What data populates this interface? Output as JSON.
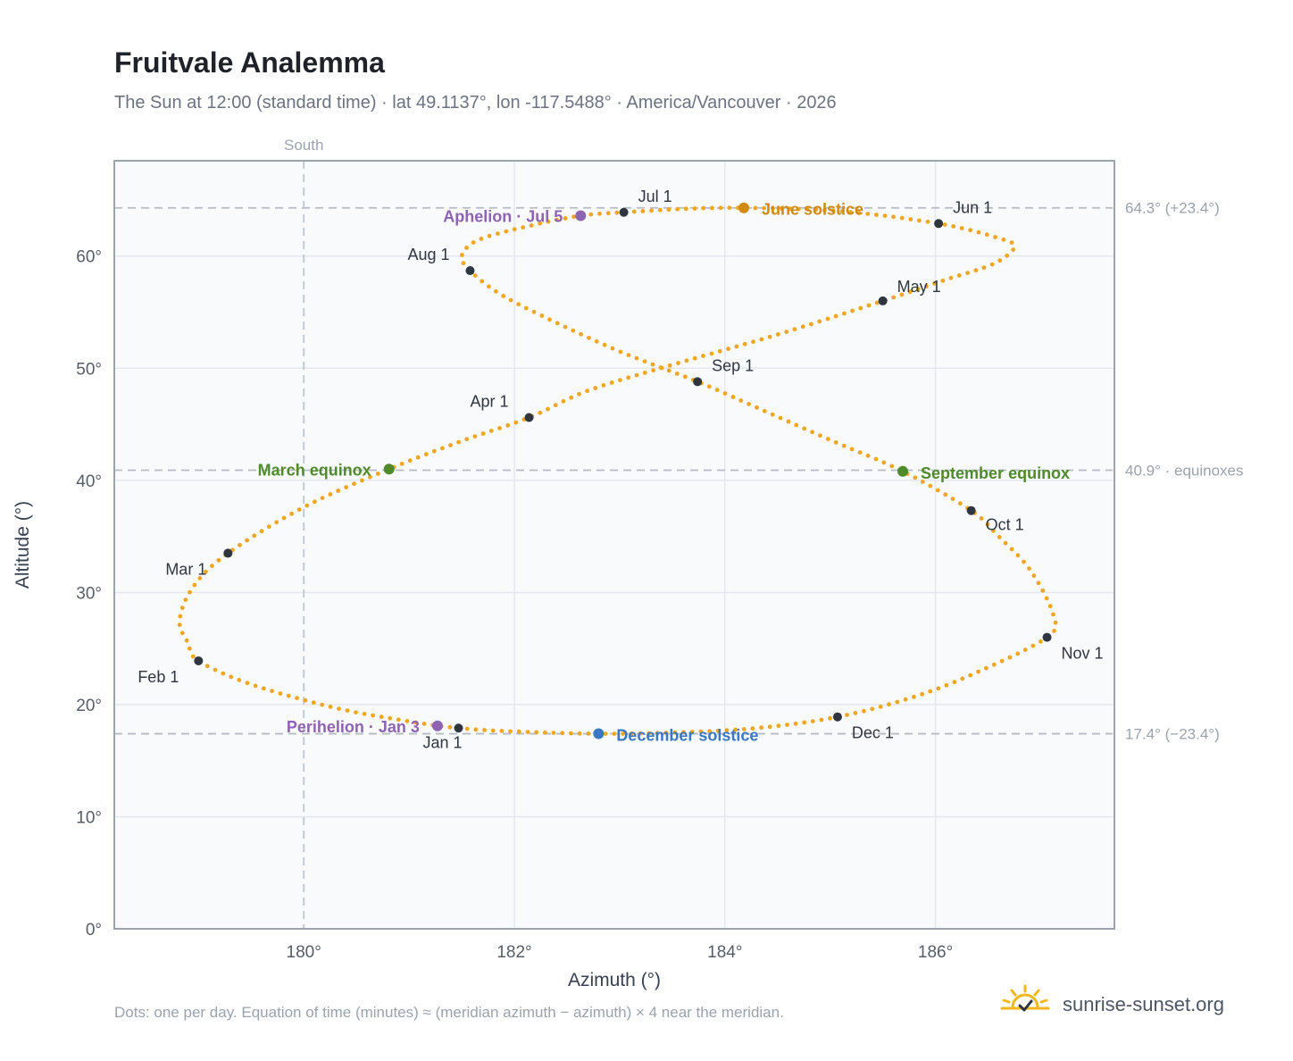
{
  "page": {
    "title": "Fruitvale Analemma",
    "subtitle": "The Sun at 12:00 (standard time) · lat 49.1137°, lon -117.5488° · America/Vancouver · 2026",
    "footnote": "Dots: one per day. Equation of time (minutes) ≈ (meridian azimuth − azimuth) × 4 near the meridian.",
    "brand": "sunrise-sunset.org",
    "brand_icon": "sun-check-icon"
  },
  "chart_data": {
    "type": "scatter",
    "xlabel": "Azimuth (°)",
    "ylabel": "Altitude (°)",
    "xlim": [
      178.2,
      187.7
    ],
    "ylim": [
      0,
      68.5
    ],
    "xticks": [
      180,
      182,
      184,
      186
    ],
    "xtick_labels": [
      "180°",
      "182°",
      "184°",
      "186°"
    ],
    "yticks": [
      0,
      10,
      20,
      30,
      40,
      50,
      60
    ],
    "ytick_labels": [
      "0°",
      "10°",
      "20°",
      "30°",
      "40°",
      "50°",
      "60°"
    ],
    "grid": true,
    "meridian": {
      "azimuth": 180,
      "label": "South"
    },
    "reference_lines": [
      {
        "altitude": 64.3,
        "label": "64.3° (+23.4°)"
      },
      {
        "altitude": 40.9,
        "label": "40.9° · equinoxes"
      },
      {
        "altitude": 17.4,
        "label": "17.4° (−23.4°)"
      }
    ],
    "analemma_path": [
      [
        181.47,
        17.9
      ],
      [
        182.0,
        17.6
      ],
      [
        182.8,
        17.4
      ],
      [
        183.5,
        17.5
      ],
      [
        184.3,
        17.9
      ],
      [
        185.07,
        18.9
      ],
      [
        185.8,
        20.7
      ],
      [
        186.4,
        22.9
      ],
      [
        187.06,
        26.0
      ],
      [
        187.12,
        28.0
      ],
      [
        186.9,
        32.0
      ],
      [
        186.6,
        35.0
      ],
      [
        186.34,
        37.3
      ],
      [
        185.69,
        40.8
      ],
      [
        185.0,
        43.6
      ],
      [
        184.3,
        46.5
      ],
      [
        183.74,
        48.8
      ],
      [
        183.0,
        51.5
      ],
      [
        182.3,
        54.5
      ],
      [
        181.85,
        56.7
      ],
      [
        181.58,
        58.7
      ],
      [
        181.5,
        60.0
      ],
      [
        181.65,
        61.4
      ],
      [
        182.1,
        62.6
      ],
      [
        182.63,
        63.6
      ],
      [
        183.04,
        63.9
      ],
      [
        183.6,
        64.2
      ],
      [
        184.18,
        64.3
      ],
      [
        185.1,
        64.0
      ],
      [
        186.03,
        62.9
      ],
      [
        186.6,
        61.6
      ],
      [
        186.75,
        60.8
      ],
      [
        186.55,
        59.3
      ],
      [
        186.1,
        57.9
      ],
      [
        185.5,
        56.0
      ],
      [
        184.5,
        53.0
      ],
      [
        183.5,
        50.3
      ],
      [
        182.7,
        48.0
      ],
      [
        182.14,
        45.6
      ],
      [
        181.5,
        43.5
      ],
      [
        180.81,
        41.0
      ],
      [
        180.0,
        37.6
      ],
      [
        179.28,
        33.5
      ],
      [
        178.95,
        30.5
      ],
      [
        178.82,
        27.5
      ],
      [
        178.9,
        25.5
      ],
      [
        179.0,
        23.9
      ],
      [
        179.5,
        21.8
      ],
      [
        180.3,
        19.7
      ],
      [
        181.0,
        18.5
      ],
      [
        181.47,
        17.9
      ]
    ],
    "month_markers": [
      {
        "label": "Jan 1",
        "az": 181.47,
        "alt": 17.9,
        "lx": -40,
        "ly": 22,
        "anchor": "start"
      },
      {
        "label": "Feb 1",
        "az": 179.0,
        "alt": 23.9,
        "lx": -68,
        "ly": 24,
        "anchor": "start"
      },
      {
        "label": "Mar 1",
        "az": 179.28,
        "alt": 33.5,
        "lx": -70,
        "ly": 24,
        "anchor": "start"
      },
      {
        "label": "Apr 1",
        "az": 182.14,
        "alt": 45.6,
        "lx": -66,
        "ly": -12,
        "anchor": "start"
      },
      {
        "label": "May 1",
        "az": 185.5,
        "alt": 56.0,
        "lx": 16,
        "ly": -10,
        "anchor": "start"
      },
      {
        "label": "Jun 1",
        "az": 186.03,
        "alt": 62.9,
        "lx": 16,
        "ly": -12,
        "anchor": "start"
      },
      {
        "label": "Jul 1",
        "az": 183.04,
        "alt": 63.9,
        "lx": 16,
        "ly": -12,
        "anchor": "start"
      },
      {
        "label": "Aug 1",
        "az": 181.58,
        "alt": 58.7,
        "lx": -70,
        "ly": -12,
        "anchor": "start"
      },
      {
        "label": "Sep 1",
        "az": 183.74,
        "alt": 48.8,
        "lx": 16,
        "ly": -12,
        "anchor": "start"
      },
      {
        "label": "Oct 1",
        "az": 186.34,
        "alt": 37.3,
        "lx": 16,
        "ly": 22,
        "anchor": "start"
      },
      {
        "label": "Nov 1",
        "az": 187.06,
        "alt": 26.0,
        "lx": 16,
        "ly": 24,
        "anchor": "start"
      },
      {
        "label": "Dec 1",
        "az": 185.07,
        "alt": 18.9,
        "lx": 16,
        "ly": 24,
        "anchor": "start"
      }
    ],
    "events": [
      {
        "label": "March equinox",
        "az": 180.81,
        "alt": 41.0,
        "color": "#4f8a2b",
        "lx": -20,
        "ly": 7,
        "anchor": "end"
      },
      {
        "label": "September equinox",
        "az": 185.69,
        "alt": 40.8,
        "color": "#4f8a2b",
        "lx": 20,
        "ly": 8,
        "anchor": "start"
      },
      {
        "label": "June solstice",
        "az": 184.18,
        "alt": 64.3,
        "color": "#d28a0e",
        "lx": 20,
        "ly": 8,
        "anchor": "start"
      },
      {
        "label": "December solstice",
        "az": 182.8,
        "alt": 17.4,
        "color": "#3a78c2",
        "lx": 20,
        "ly": 8,
        "anchor": "start"
      },
      {
        "label": "Aphelion · Jul 5",
        "az": 182.63,
        "alt": 63.6,
        "color": "#8e63b4",
        "lx": -20,
        "ly": 7,
        "anchor": "end"
      },
      {
        "label": "Perihelion · Jan 3",
        "az": 181.27,
        "alt": 18.1,
        "color": "#8e63b4",
        "lx": -20,
        "ly": 7,
        "anchor": "end"
      }
    ],
    "colors": {
      "daily_dots": "#f0a623",
      "month_markers": "#2f3640",
      "plot_background": "#f8fafc",
      "frame": "#9aa3ae",
      "grid": "#e4e8ee",
      "reference_line": "#b6bcc4",
      "meridian_line": "#b9c7d6",
      "axis_text": "#555d66",
      "side_label_text": "#9aa3ad"
    }
  }
}
